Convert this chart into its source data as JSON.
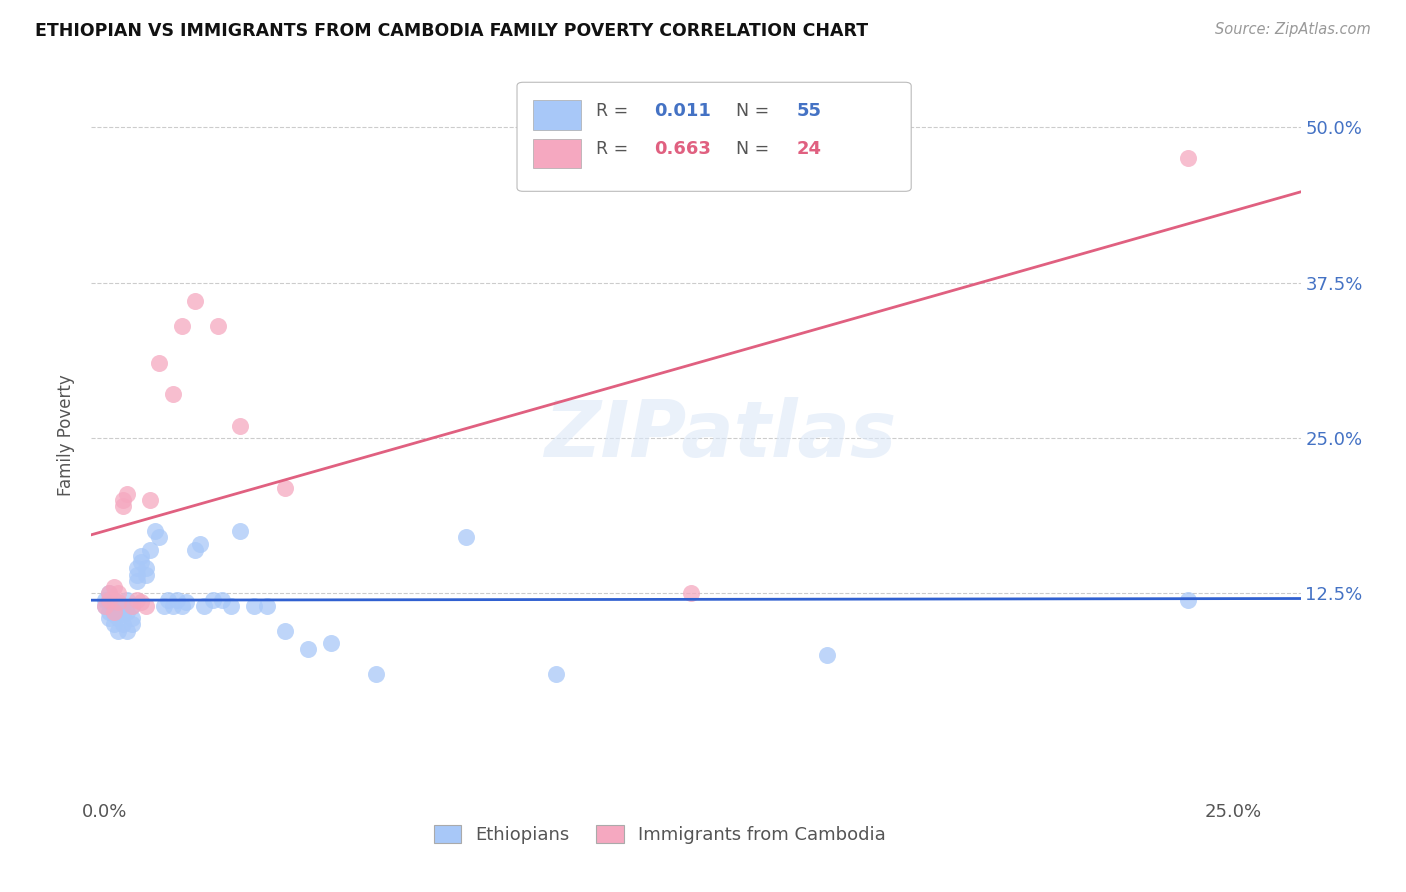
{
  "title": "ETHIOPIAN VS IMMIGRANTS FROM CAMBODIA FAMILY POVERTY CORRELATION CHART",
  "source": "Source: ZipAtlas.com",
  "ylabel_label": "Family Poverty",
  "legend_label1": "Ethiopians",
  "legend_label2": "Immigrants from Cambodia",
  "r1": "0.011",
  "n1": "55",
  "r2": "0.663",
  "n2": "24",
  "color1": "#a8c8f8",
  "color2": "#f5a8c0",
  "line1_color": "#3060d0",
  "line2_color": "#e06080",
  "watermark": "ZIPatlas",
  "xlim_min": -0.003,
  "xlim_max": 0.265,
  "ylim_min": -0.04,
  "ylim_max": 0.545,
  "ytick_vals": [
    0.125,
    0.25,
    0.375,
    0.5
  ],
  "ytick_labels": [
    "12.5%",
    "25.0%",
    "37.5%",
    "50.0%"
  ],
  "xtick_vals": [
    0.0,
    0.25
  ],
  "xtick_labels": [
    "0.0%",
    "25.0%"
  ],
  "eth_x": [
    0.0,
    0.0,
    0.001,
    0.001,
    0.001,
    0.002,
    0.002,
    0.002,
    0.002,
    0.003,
    0.003,
    0.003,
    0.003,
    0.004,
    0.004,
    0.004,
    0.005,
    0.005,
    0.005,
    0.006,
    0.006,
    0.006,
    0.007,
    0.007,
    0.007,
    0.008,
    0.008,
    0.009,
    0.009,
    0.01,
    0.011,
    0.012,
    0.013,
    0.014,
    0.015,
    0.016,
    0.017,
    0.018,
    0.02,
    0.021,
    0.022,
    0.024,
    0.026,
    0.028,
    0.03,
    0.033,
    0.036,
    0.04,
    0.045,
    0.05,
    0.06,
    0.08,
    0.1,
    0.16,
    0.24
  ],
  "eth_y": [
    0.12,
    0.115,
    0.105,
    0.11,
    0.125,
    0.1,
    0.108,
    0.112,
    0.12,
    0.095,
    0.105,
    0.11,
    0.115,
    0.1,
    0.108,
    0.115,
    0.11,
    0.095,
    0.12,
    0.1,
    0.105,
    0.115,
    0.135,
    0.14,
    0.145,
    0.15,
    0.155,
    0.145,
    0.14,
    0.16,
    0.175,
    0.17,
    0.115,
    0.12,
    0.115,
    0.12,
    0.115,
    0.118,
    0.16,
    0.165,
    0.115,
    0.12,
    0.12,
    0.115,
    0.175,
    0.115,
    0.115,
    0.095,
    0.08,
    0.085,
    0.06,
    0.17,
    0.06,
    0.075,
    0.12
  ],
  "cam_x": [
    0.0,
    0.001,
    0.001,
    0.002,
    0.002,
    0.003,
    0.003,
    0.004,
    0.004,
    0.005,
    0.006,
    0.007,
    0.008,
    0.009,
    0.01,
    0.012,
    0.015,
    0.017,
    0.02,
    0.025,
    0.03,
    0.04,
    0.13,
    0.24
  ],
  "cam_y": [
    0.115,
    0.12,
    0.125,
    0.11,
    0.13,
    0.118,
    0.125,
    0.195,
    0.2,
    0.205,
    0.115,
    0.12,
    0.118,
    0.115,
    0.2,
    0.31,
    0.285,
    0.34,
    0.36,
    0.34,
    0.26,
    0.21,
    0.125,
    0.475
  ]
}
